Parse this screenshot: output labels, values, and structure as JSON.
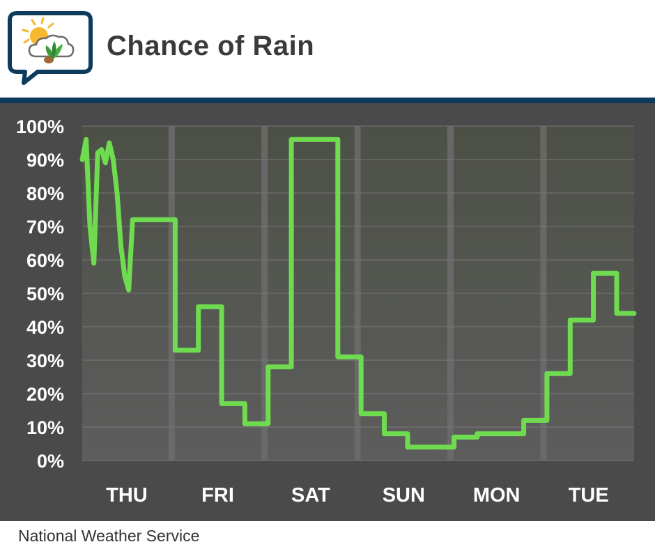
{
  "header": {
    "title": "Chance of Rain",
    "logo_icon": "weather-sun-cloud-leaf-icon"
  },
  "footer": {
    "source": "National Weather Service"
  },
  "colors": {
    "line": "#6fdc50",
    "panel_background": "#4a4a4a",
    "header_rule": "#0c3b5c",
    "title": "#3a3a3a",
    "logo_border": "#0c3b5c"
  },
  "chart_data": {
    "type": "line",
    "title": "Chance of Rain",
    "xlabel": "",
    "ylabel": "",
    "ylim": [
      0,
      100
    ],
    "yticks": [
      0,
      10,
      20,
      30,
      40,
      50,
      60,
      70,
      80,
      90,
      100
    ],
    "ytick_labels": [
      "0%",
      "10%",
      "20%",
      "30%",
      "40%",
      "50%",
      "60%",
      "70%",
      "80%",
      "90%",
      "100%"
    ],
    "categories": [
      "THU",
      "FRI",
      "SAT",
      "SUN",
      "MON",
      "TUE"
    ],
    "x_unit": "hours from start of chart",
    "xlim": [
      0,
      142.5
    ],
    "day_boundaries": [
      23,
      47,
      71,
      95,
      119
    ],
    "grid": true,
    "series": [
      {
        "values_x": [
          0,
          1,
          2,
          3,
          4,
          5,
          6,
          7,
          8,
          9,
          10,
          11,
          12,
          13,
          14,
          15,
          16,
          17,
          18,
          19,
          24,
          30,
          36,
          42,
          48,
          54,
          60,
          66,
          72,
          78,
          84,
          90,
          96,
          102,
          108,
          114,
          120,
          126,
          132,
          138,
          142.5
        ],
        "values_y": [
          90,
          96,
          70,
          59,
          92,
          93,
          89,
          95,
          90,
          80,
          64,
          55,
          51,
          72,
          72,
          72,
          72,
          72,
          72,
          72,
          33,
          46,
          17,
          11,
          28,
          96,
          96,
          31,
          14,
          8,
          4,
          4,
          7,
          8,
          8,
          12,
          26,
          42,
          56,
          44,
          44
        ],
        "step_after_hour": 19
      }
    ]
  }
}
